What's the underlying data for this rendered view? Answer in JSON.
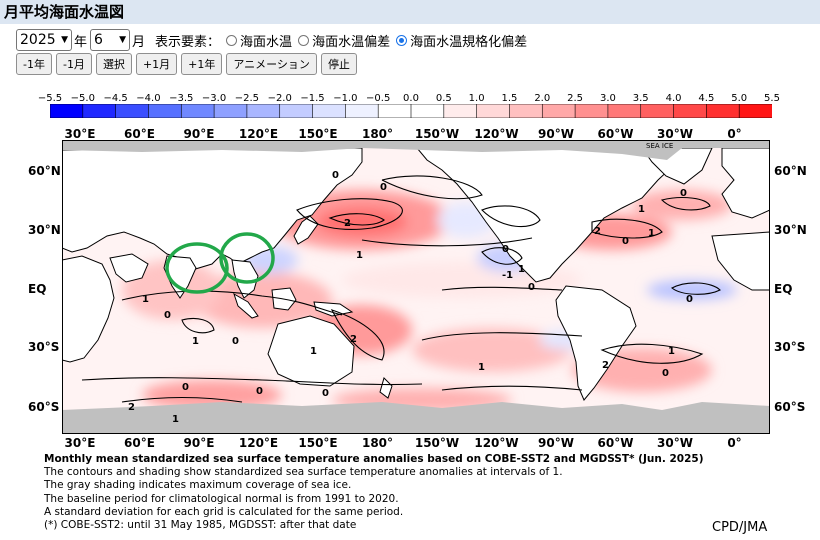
{
  "page_title": "月平均海面水温図",
  "controls": {
    "year_value": "2025",
    "year_unit": "年",
    "month_value": "6",
    "month_unit": "月",
    "display_label": "表示要素：",
    "radios": [
      {
        "label": "海面水温",
        "checked": false
      },
      {
        "label": "海面水温偏差",
        "checked": false
      },
      {
        "label": "海面水温規格化偏差",
        "checked": true
      }
    ],
    "buttons": [
      "-1年",
      "-1月",
      "選択",
      "+1月",
      "+1年",
      "アニメーション",
      "停止"
    ]
  },
  "colorbar": {
    "labels": [
      "−5.5",
      "−5.0",
      "−4.5",
      "−4.0",
      "−3.5",
      "−3.0",
      "−2.5",
      "−2.0",
      "−1.5",
      "−1.0",
      "−0.5",
      "0.0",
      "0.5",
      "1.0",
      "1.5",
      "2.0",
      "2.5",
      "3.0",
      "3.5",
      "4.0",
      "4.5",
      "5.0",
      "5.5"
    ],
    "colors": [
      "#0000ff",
      "#1f28ff",
      "#3a4eff",
      "#5670ff",
      "#7088ff",
      "#8ea0ff",
      "#a9b6ff",
      "#c3ccff",
      "#dbe1ff",
      "#eef1ff",
      "#ffffff",
      "#ffffff",
      "#ffecec",
      "#ffd8d8",
      "#ffc0c0",
      "#ffa8a8",
      "#ff9090",
      "#ff7878",
      "#ff6060",
      "#ff4848",
      "#ff3030",
      "#ff1515"
    ]
  },
  "map": {
    "lon_labels": [
      "30°E",
      "60°E",
      "90°E",
      "120°E",
      "150°E",
      "180°",
      "150°W",
      "120°W",
      "90°W",
      "60°W",
      "30°W",
      "0°"
    ],
    "lat_labels": [
      "60°N",
      "30°N",
      "EQ",
      "30°S",
      "60°S"
    ],
    "sea_ice_label": "SEA ICE",
    "contour_labels": [
      "0",
      "0",
      "2",
      "1",
      "0",
      "2",
      "1",
      "0",
      "1",
      "0",
      "1",
      "0",
      "-1",
      "0",
      "1",
      "0",
      "1",
      "0",
      "2",
      "1",
      "0",
      "1",
      "2",
      "0",
      "1",
      "0",
      "0",
      "1",
      "2"
    ],
    "colors": {
      "land": "#ffffff",
      "sea_ice": "#c0c0c0",
      "highlight": "#22a84a"
    }
  },
  "caption": {
    "title": "Monthly mean standardized sea surface temperature anomalies based on COBE-SST2 and MGDSST* (Jun. 2025)",
    "lines": [
      "The contours and shading show standardized sea surface temperature anomalies at intervals of 1.",
      "The gray shading indicates maximum coverage of sea ice.",
      "The baseline period for climatological normal is from 1991 to 2020.",
      "A standard deviation for each grid is calculated for the same period.",
      "(*) COBE-SST2: until 31 May 1985, MGDSST: after that date"
    ]
  },
  "credit": "CPD/JMA"
}
